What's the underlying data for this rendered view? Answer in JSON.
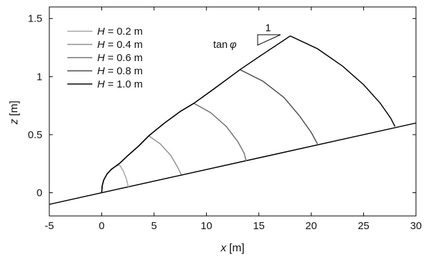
{
  "chart_data": {
    "type": "line",
    "title": "",
    "xlabel": {
      "var": "x",
      "unit": "[m]"
    },
    "ylabel": {
      "var": "z",
      "unit": "[m]"
    },
    "xlim": [
      -5,
      30
    ],
    "ylim": [
      -0.2,
      1.6
    ],
    "xticks": [
      -5,
      0,
      5,
      10,
      15,
      20,
      25,
      30
    ],
    "yticks": [
      0,
      0.5,
      1,
      1.5
    ],
    "xtick_labels": [
      "-5",
      "0",
      "5",
      "10",
      "15",
      "20",
      "25",
      "30"
    ],
    "ytick_labels": [
      "0",
      "0.5",
      "1",
      "1.5"
    ],
    "grid": false,
    "legend_position": "top-left",
    "legend": [
      {
        "var": "H",
        "label": " = 0.2 m",
        "color": "#a6a6a6"
      },
      {
        "var": "H",
        "label": " = 0.4 m",
        "color": "#8f8f8f"
      },
      {
        "var": "H",
        "label": " = 0.6 m",
        "color": "#737373"
      },
      {
        "var": "H",
        "label": " = 0.8 m",
        "color": "#4d4d4d"
      },
      {
        "var": "H",
        "label": " = 1.0 m",
        "color": "#000000"
      }
    ],
    "slope_annotation": {
      "label": "tan",
      "symbol": "φ",
      "run_label": "1"
    },
    "bed": {
      "x": [
        -5,
        30
      ],
      "z": [
        -0.1,
        0.6
      ]
    },
    "series": [
      {
        "H": 0.2,
        "color": "#a6a6a6",
        "upper": {
          "x": [
            0.0,
            0.05,
            0.2,
            0.5,
            0.9,
            1.3,
            1.7
          ],
          "z": [
            0.0,
            0.06,
            0.11,
            0.16,
            0.2,
            0.226,
            0.24
          ]
        },
        "front": {
          "x": [
            1.7,
            2.05,
            2.35,
            2.55
          ],
          "z": [
            0.24,
            0.19,
            0.12,
            0.05
          ]
        }
      },
      {
        "H": 0.4,
        "color": "#8f8f8f",
        "upper": {
          "x": [
            0.0,
            0.05,
            0.2,
            0.5,
            0.9,
            1.3,
            1.8,
            2.5,
            3.5,
            4.5
          ],
          "z": [
            0.0,
            0.06,
            0.11,
            0.16,
            0.2,
            0.226,
            0.26,
            0.32,
            0.4,
            0.49
          ]
        },
        "front": {
          "x": [
            4.5,
            5.6,
            6.6,
            7.25,
            7.6
          ],
          "z": [
            0.49,
            0.42,
            0.32,
            0.22,
            0.155
          ]
        }
      },
      {
        "H": 0.6,
        "color": "#737373",
        "upper": {
          "x": [
            0.0,
            0.05,
            0.2,
            0.5,
            0.9,
            1.3,
            1.8,
            2.5,
            3.5,
            4.5,
            6.0,
            7.5,
            8.8
          ],
          "z": [
            0.0,
            0.06,
            0.11,
            0.16,
            0.2,
            0.226,
            0.26,
            0.32,
            0.4,
            0.49,
            0.6,
            0.7,
            0.77
          ]
        },
        "front": {
          "x": [
            8.8,
            10.4,
            11.9,
            13.0,
            13.6,
            13.8
          ],
          "z": [
            0.77,
            0.69,
            0.57,
            0.44,
            0.34,
            0.27
          ]
        }
      },
      {
        "H": 0.8,
        "color": "#4d4d4d",
        "upper": {
          "x": [
            0.0,
            0.05,
            0.2,
            0.5,
            0.9,
            1.3,
            1.8,
            2.5,
            3.5,
            4.5,
            6.0,
            7.5,
            8.8,
            10.5,
            12.0,
            13.2
          ],
          "z": [
            0.0,
            0.06,
            0.11,
            0.16,
            0.2,
            0.226,
            0.26,
            0.32,
            0.4,
            0.49,
            0.6,
            0.7,
            0.77,
            0.88,
            0.98,
            1.06
          ]
        },
        "front": {
          "x": [
            13.2,
            15.4,
            17.4,
            18.9,
            20.0,
            20.6
          ],
          "z": [
            1.06,
            0.96,
            0.82,
            0.66,
            0.52,
            0.42
          ]
        }
      },
      {
        "H": 1.0,
        "color": "#000000",
        "upper": {
          "x": [
            0.0,
            0.05,
            0.2,
            0.5,
            0.9,
            1.3,
            1.8,
            2.5,
            3.5,
            4.5,
            6.0,
            7.5,
            8.8,
            10.5,
            12.0,
            13.2,
            15.0,
            16.5,
            18.0
          ],
          "z": [
            0.0,
            0.06,
            0.11,
            0.16,
            0.2,
            0.226,
            0.26,
            0.32,
            0.4,
            0.49,
            0.6,
            0.7,
            0.77,
            0.88,
            0.98,
            1.06,
            1.17,
            1.26,
            1.35
          ]
        },
        "front": {
          "x": [
            18.0,
            20.6,
            23.0,
            25.0,
            26.6,
            27.6,
            28.0
          ],
          "z": [
            1.35,
            1.24,
            1.09,
            0.93,
            0.77,
            0.64,
            0.57
          ]
        }
      }
    ]
  }
}
